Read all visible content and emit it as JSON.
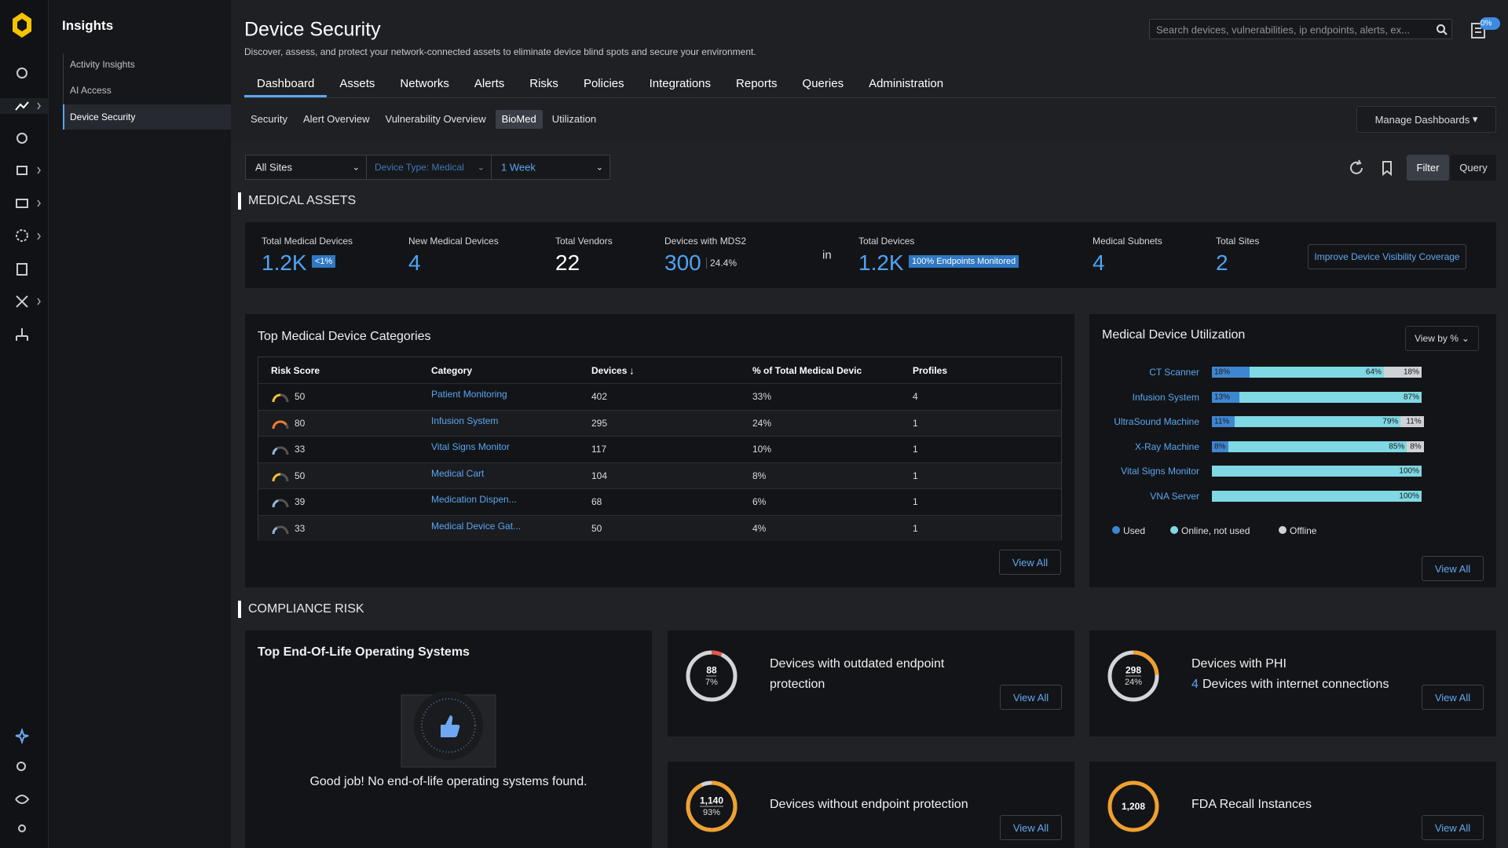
{
  "sidebar": {
    "title": "Insights",
    "items": [
      "Activity Insights",
      "AI Access",
      "Device Security"
    ]
  },
  "header": {
    "title": "Device Security",
    "subtitle": "Discover, assess, and protect your network-connected assets to eliminate device blind spots and secure your environment.",
    "search_placeholder": "Search devices, vulnerabilities, ip endpoints, alerts, ex...",
    "badge": "0%"
  },
  "tabs": [
    "Dashboard",
    "Assets",
    "Networks",
    "Alerts",
    "Risks",
    "Policies",
    "Integrations",
    "Reports",
    "Queries",
    "Administration"
  ],
  "subtabs": [
    "Security",
    "Alert Overview",
    "Vulnerability Overview",
    "BioMed",
    "Utilization"
  ],
  "manage_dashboards": "Manage Dashboards",
  "filters": {
    "site": "All Sites",
    "device_type": "Device Type: Medical",
    "period": "1 Week",
    "filter": "Filter",
    "query": "Query"
  },
  "medical_assets": {
    "heading": "MEDICAL ASSETS",
    "stats": [
      {
        "label": "Total Medical Devices",
        "value": "1.2K",
        "badge": "<1%"
      },
      {
        "label": "New Medical Devices",
        "value": "4"
      },
      {
        "label": "Total Vendors",
        "value": "22"
      },
      {
        "label": "Devices with MDS2",
        "value": "300",
        "badge": "24.4%"
      },
      {
        "label": "Total Devices",
        "value": "1.2K",
        "badge": "100% Endpoints Monitored"
      },
      {
        "label": "Medical Subnets",
        "value": "4"
      },
      {
        "label": "Total Sites",
        "value": "2"
      }
    ],
    "connector": "in",
    "improve": "Improve Device Visibility Coverage"
  },
  "categories": {
    "title": "Top Medical Device Categories",
    "columns": [
      "Risk Score",
      "Category",
      "Devices",
      "% of Total Medical Devic",
      "Profiles"
    ],
    "rows": [
      [
        50,
        "Patient Monitoring",
        402,
        "33%",
        4
      ],
      [
        80,
        "Infusion System",
        295,
        "24%",
        1
      ],
      [
        33,
        "Vital Signs Monitor",
        117,
        "10%",
        1
      ],
      [
        50,
        "Medical Cart",
        104,
        "8%",
        1
      ],
      [
        39,
        "Medication Dispen...",
        68,
        "6%",
        1
      ],
      [
        33,
        "Medical Device Gat...",
        50,
        "4%",
        1
      ]
    ],
    "view_all": "View All"
  },
  "utilization": {
    "title": "Medical Device Utilization",
    "view_by": "View by %",
    "legend": [
      "Used",
      "Online, not used",
      "Offline"
    ],
    "rows": [
      {
        "name": "CT Scanner",
        "values": [
          18,
          64,
          18
        ],
        "value_labels": [
          "18%",
          "64%",
          "18%"
        ]
      },
      {
        "name": "Infusion System",
        "values": [
          13,
          87,
          0
        ],
        "value_labels": [
          "13%",
          "87%",
          null
        ]
      },
      {
        "name": "UltraSound Machine",
        "values": [
          11,
          79,
          11
        ],
        "value_labels": [
          "11%",
          "79%",
          "11%"
        ]
      },
      {
        "name": "X-Ray Machine",
        "values": [
          8,
          85,
          8
        ],
        "value_labels": [
          "8%",
          "85%",
          "8%"
        ]
      },
      {
        "name": "Vital Signs Monitor",
        "values": [
          0,
          100,
          0
        ],
        "value_labels": [
          null,
          "100%",
          null
        ]
      },
      {
        "name": "VNA Server",
        "values": [
          0,
          100,
          0
        ],
        "value_labels": [
          null,
          "100%",
          null
        ]
      }
    ],
    "view_all": "View All"
  },
  "compliance": {
    "heading": "COMPLIANCE RISK",
    "eol": {
      "title": "Top End-Of-Life Operating Systems",
      "message": "Good job! No end-of-life operating systems found."
    },
    "cards": [
      {
        "count": "88",
        "percent": 7,
        "percent_label": "7%",
        "title": "Devices with outdated endpoint protection",
        "view_all": "View All"
      },
      {
        "count": "298",
        "percent": 24,
        "percent_label": "24%",
        "title": "Devices with PHI",
        "subtitle_count": "4",
        "subtitle": "Devices with internet connections",
        "view_all": "View All"
      },
      {
        "count": "1,140",
        "percent": 93,
        "percent_label": "93%",
        "title": "Devices without endpoint protection",
        "view_all": "View All"
      },
      {
        "count": "1,208",
        "title": "FDA Recall Instances",
        "view_all": "View All"
      }
    ]
  }
}
